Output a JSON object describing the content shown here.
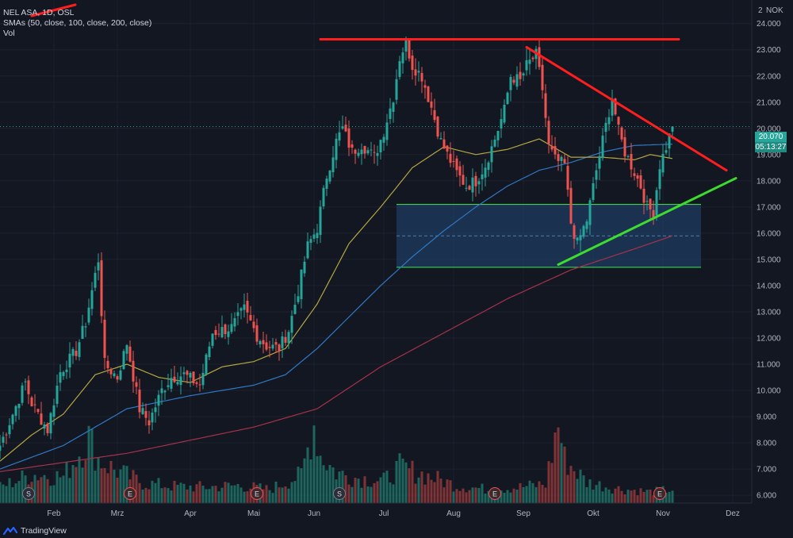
{
  "legend": {
    "symbol": "NEL ASA, 1D, OSL",
    "indicator": "SMAs (50, close, 100, close, 200, close)",
    "volume": "Vol"
  },
  "corner": {
    "scale": "2",
    "currency": "NOK"
  },
  "last_price": {
    "value": "20.070",
    "countdown": "05:13:27"
  },
  "brand": "TradingView",
  "colors": {
    "background": "#131722",
    "up": "#26a69a",
    "down": "#ef5350",
    "sma50": "#b5a642",
    "sma100": "#2f78c4",
    "sma200": "#a5324a",
    "resistance": "#ff1e1e",
    "support": "#3ddc2e",
    "zone_fill": "#1e3f63",
    "zone_border": "#39d353",
    "price_tag": "#26a69a"
  },
  "chart_data": {
    "type": "candlestick",
    "title": "NEL ASA, 1D, OSL",
    "y_ticks": [
      "24.000",
      "23.000",
      "22.000",
      "21.000",
      "20.000",
      "19.000",
      "18.000",
      "17.000",
      "16.000",
      "15.000",
      "14.000",
      "13.000",
      "12.000",
      "11.000",
      "10.000",
      "9.000",
      "8.000",
      "7.000",
      "6.000"
    ],
    "y_range": [
      5.7,
      24.9
    ],
    "x_ticks": [
      {
        "label": "Feb",
        "index": 17
      },
      {
        "label": "Mrz",
        "index": 37
      },
      {
        "label": "Apr",
        "index": 60
      },
      {
        "label": "Mai",
        "index": 80
      },
      {
        "label": "Jun",
        "index": 99
      },
      {
        "label": "Jul",
        "index": 121
      },
      {
        "label": "Aug",
        "index": 143
      },
      {
        "label": "Sep",
        "index": 165
      },
      {
        "label": "Okt",
        "index": 187
      },
      {
        "label": "Nov",
        "index": 209
      },
      {
        "label": "Dez",
        "index": 231
      }
    ],
    "close_anchors": [
      [
        0,
        7.9
      ],
      [
        8,
        10.3
      ],
      [
        10,
        9.5
      ],
      [
        15,
        8.5
      ],
      [
        19,
        10.7
      ],
      [
        24,
        11.5
      ],
      [
        27,
        12.6
      ],
      [
        31,
        15.0
      ],
      [
        33,
        11.0
      ],
      [
        37,
        10.5
      ],
      [
        40,
        11.8
      ],
      [
        44,
        9.3
      ],
      [
        47,
        8.8
      ],
      [
        51,
        10.0
      ],
      [
        54,
        10.5
      ],
      [
        58,
        10.6
      ],
      [
        63,
        10.2
      ],
      [
        67,
        12.2
      ],
      [
        73,
        12.4
      ],
      [
        77,
        13.1
      ],
      [
        81,
        12.1
      ],
      [
        84,
        11.7
      ],
      [
        88,
        11.6
      ],
      [
        91,
        12.3
      ],
      [
        94,
        13.8
      ],
      [
        97,
        15.5
      ],
      [
        100,
        16.2
      ],
      [
        103,
        18.2
      ],
      [
        106,
        19.5
      ],
      [
        108,
        20.0
      ],
      [
        111,
        19.1
      ],
      [
        114,
        19.4
      ],
      [
        118,
        18.9
      ],
      [
        121,
        19.9
      ],
      [
        124,
        21.2
      ],
      [
        126,
        22.7
      ],
      [
        128,
        23.3
      ],
      [
        130,
        22.4
      ],
      [
        133,
        22.0
      ],
      [
        136,
        20.8
      ],
      [
        139,
        19.5
      ],
      [
        141,
        19.0
      ],
      [
        144,
        18.3
      ],
      [
        147,
        17.8
      ],
      [
        150,
        18.0
      ],
      [
        153,
        18.6
      ],
      [
        156,
        19.6
      ],
      [
        159,
        20.7
      ],
      [
        161,
        22.0
      ],
      [
        164,
        21.8
      ],
      [
        166,
        22.4
      ],
      [
        169,
        22.8
      ],
      [
        171,
        21.5
      ],
      [
        173,
        19.3
      ],
      [
        175,
        18.8
      ],
      [
        178,
        18.6
      ],
      [
        180,
        16.4
      ],
      [
        182,
        15.6
      ],
      [
        185,
        16.5
      ],
      [
        188,
        18.4
      ],
      [
        191,
        20.1
      ],
      [
        193,
        21.2
      ],
      [
        195,
        19.9
      ],
      [
        197,
        19.1
      ],
      [
        199,
        18.6
      ],
      [
        202,
        17.8
      ],
      [
        204,
        17.0
      ],
      [
        206,
        16.8
      ],
      [
        208,
        18.6
      ],
      [
        210,
        19.3
      ],
      [
        212,
        20.07
      ]
    ],
    "sma50": [
      [
        0,
        7.3
      ],
      [
        10,
        8.3
      ],
      [
        20,
        9.1
      ],
      [
        30,
        10.6
      ],
      [
        40,
        11.0
      ],
      [
        50,
        10.5
      ],
      [
        60,
        10.3
      ],
      [
        70,
        10.9
      ],
      [
        80,
        11.1
      ],
      [
        90,
        11.6
      ],
      [
        100,
        13.3
      ],
      [
        110,
        15.6
      ],
      [
        120,
        17.0
      ],
      [
        130,
        18.5
      ],
      [
        140,
        19.3
      ],
      [
        150,
        19.0
      ],
      [
        160,
        19.2
      ],
      [
        170,
        19.6
      ],
      [
        180,
        18.9
      ],
      [
        190,
        18.9
      ],
      [
        200,
        18.8
      ],
      [
        205,
        19.0
      ],
      [
        212,
        18.85
      ]
    ],
    "sma100": [
      [
        0,
        7.0
      ],
      [
        20,
        7.9
      ],
      [
        40,
        9.3
      ],
      [
        60,
        9.8
      ],
      [
        80,
        10.2
      ],
      [
        90,
        10.6
      ],
      [
        100,
        11.6
      ],
      [
        110,
        12.8
      ],
      [
        120,
        14.0
      ],
      [
        130,
        15.1
      ],
      [
        140,
        16.1
      ],
      [
        150,
        17.0
      ],
      [
        160,
        17.8
      ],
      [
        170,
        18.4
      ],
      [
        180,
        18.7
      ],
      [
        190,
        19.1
      ],
      [
        200,
        19.35
      ],
      [
        212,
        19.4
      ]
    ],
    "sma200": [
      [
        0,
        6.9
      ],
      [
        40,
        7.6
      ],
      [
        80,
        8.6
      ],
      [
        100,
        9.3
      ],
      [
        120,
        10.9
      ],
      [
        140,
        12.2
      ],
      [
        160,
        13.5
      ],
      [
        180,
        14.6
      ],
      [
        200,
        15.4
      ],
      [
        212,
        15.9
      ]
    ],
    "drawings": {
      "resistance": [
        [
          101,
          23.4
        ],
        [
          214,
          23.4
        ]
      ],
      "descending": [
        [
          166,
          23.1
        ],
        [
          229,
          18.4
        ]
      ],
      "ascending": [
        [
          176,
          14.8
        ],
        [
          232,
          18.1
        ]
      ],
      "zone": {
        "from_index": 125,
        "to_index": 221,
        "top": 17.1,
        "bottom": 14.7,
        "mid": 15.9
      }
    },
    "volume_anchors": [
      [
        0,
        0.2
      ],
      [
        10,
        0.36
      ],
      [
        20,
        0.33
      ],
      [
        28,
        0.82
      ],
      [
        31,
        0.55
      ],
      [
        36,
        0.42
      ],
      [
        45,
        0.25
      ],
      [
        55,
        0.21
      ],
      [
        65,
        0.2
      ],
      [
        75,
        0.22
      ],
      [
        85,
        0.17
      ],
      [
        95,
        0.35
      ],
      [
        99,
        1.0
      ],
      [
        101,
        0.6
      ],
      [
        106,
        0.38
      ],
      [
        112,
        0.32
      ],
      [
        121,
        0.28
      ],
      [
        126,
        0.45
      ],
      [
        134,
        0.35
      ],
      [
        144,
        0.22
      ],
      [
        154,
        0.17
      ],
      [
        164,
        0.2
      ],
      [
        172,
        0.24
      ],
      [
        176,
        1.0
      ],
      [
        178,
        0.55
      ],
      [
        185,
        0.26
      ],
      [
        195,
        0.18
      ],
      [
        205,
        0.14
      ],
      [
        212,
        0.17
      ]
    ],
    "event_markers": [
      {
        "label": "S",
        "index": 9
      },
      {
        "label": "E",
        "index": 41
      },
      {
        "label": "E",
        "index": 81
      },
      {
        "label": "S",
        "index": 107
      },
      {
        "label": "E",
        "index": 156
      },
      {
        "label": "E",
        "index": 208
      }
    ]
  }
}
